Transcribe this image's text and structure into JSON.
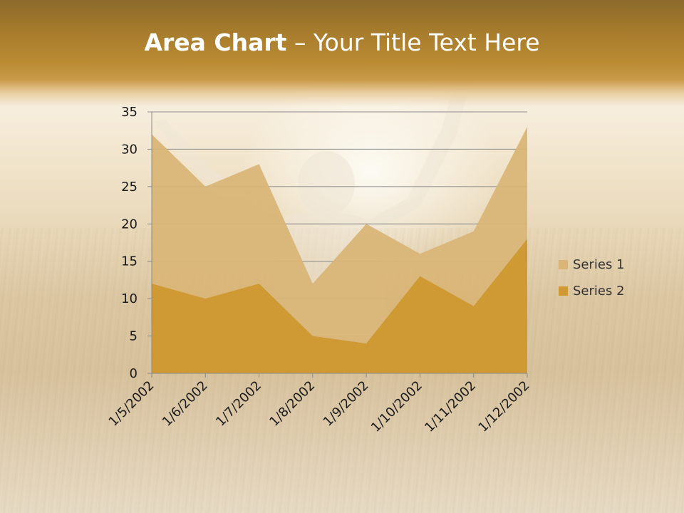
{
  "slide": {
    "title_bold": "Area Chart",
    "title_rest": " – Your Title Text Here"
  },
  "colors": {
    "series1": "#d9b577",
    "series2": "#cf9a33",
    "title_bar": "#a47a2c",
    "gridline": "#8a8a8a",
    "text": "#1a1a1a"
  },
  "chart_data": {
    "type": "area",
    "title": "",
    "xlabel": "",
    "ylabel": "",
    "categories": [
      "1/5/2002",
      "1/6/2002",
      "1/7/2002",
      "1/8/2002",
      "1/9/2002",
      "1/10/2002",
      "1/11/2002",
      "1/12/2002"
    ],
    "series": [
      {
        "name": "Series 1",
        "values": [
          32,
          25,
          28,
          12,
          20,
          16,
          19,
          33
        ]
      },
      {
        "name": "Series 2",
        "values": [
          12,
          10,
          12,
          5,
          4,
          13,
          9,
          18
        ]
      }
    ],
    "ylim": [
      0,
      35
    ],
    "yticks": [
      0,
      5,
      10,
      15,
      20,
      25,
      30,
      35
    ],
    "grid": true,
    "legend": "right",
    "overlapping": true
  }
}
